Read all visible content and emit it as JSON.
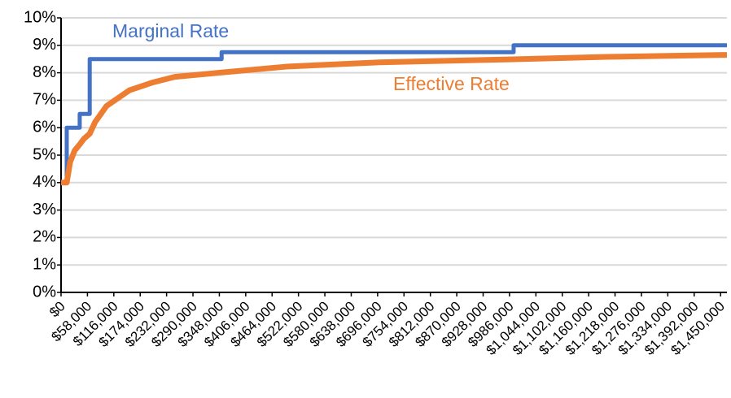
{
  "chart_data": {
    "type": "line",
    "series": [
      {
        "name": "Marginal Rate",
        "color": "#4472c4",
        "x": [
          0,
          12500,
          12500,
          41000,
          41000,
          63000,
          63000,
          353000,
          353000,
          995000,
          995000,
          1464000
        ],
        "values": [
          4,
          4,
          6,
          6,
          6.5,
          6.5,
          8.5,
          8.5,
          8.75,
          8.75,
          9,
          9
        ]
      },
      {
        "name": "Effective Rate",
        "color": "#ed7d31",
        "x": [
          0,
          12500,
          20000,
          30000,
          41000,
          50000,
          63000,
          75000,
          100000,
          150000,
          200000,
          250000,
          353000,
          500000,
          700000,
          995000,
          1200000,
          1464000
        ],
        "values": [
          4,
          4,
          4.75,
          5.17,
          5.39,
          5.59,
          5.78,
          6.21,
          6.79,
          7.36,
          7.64,
          7.85,
          8.01,
          8.23,
          8.38,
          8.49,
          8.58,
          8.65
        ]
      }
    ],
    "xlim": [
      0,
      1464000
    ],
    "xticks": [
      {
        "value": 0,
        "label": "$0"
      },
      {
        "value": 58000,
        "label": "$58,000"
      },
      {
        "value": 116000,
        "label": "$116,000"
      },
      {
        "value": 174000,
        "label": "$174,000"
      },
      {
        "value": 232000,
        "label": "$232,000"
      },
      {
        "value": 290000,
        "label": "$290,000"
      },
      {
        "value": 348000,
        "label": "$348,000"
      },
      {
        "value": 406000,
        "label": "$406,000"
      },
      {
        "value": 464000,
        "label": "$464,000"
      },
      {
        "value": 522000,
        "label": "$522,000"
      },
      {
        "value": 580000,
        "label": "$580,000"
      },
      {
        "value": 638000,
        "label": "$638,000"
      },
      {
        "value": 696000,
        "label": "$696,000"
      },
      {
        "value": 754000,
        "label": "$754,000"
      },
      {
        "value": 812000,
        "label": "$812,000"
      },
      {
        "value": 870000,
        "label": "$870,000"
      },
      {
        "value": 928000,
        "label": "$928,000"
      },
      {
        "value": 986000,
        "label": "$986,000"
      },
      {
        "value": 1044000,
        "label": "$1,044,000"
      },
      {
        "value": 1102000,
        "label": "$1,102,000"
      },
      {
        "value": 1160000,
        "label": "$1,160,000"
      },
      {
        "value": 1218000,
        "label": "$1,218,000"
      },
      {
        "value": 1276000,
        "label": "$1,276,000"
      },
      {
        "value": 1334000,
        "label": "$1,334,000"
      },
      {
        "value": 1392000,
        "label": "$1,392,000"
      },
      {
        "value": 1450000,
        "label": "$1,450,000"
      }
    ],
    "ylim": [
      0,
      10
    ],
    "yticks": [
      {
        "value": 0,
        "label": "0%"
      },
      {
        "value": 1,
        "label": "1%"
      },
      {
        "value": 2,
        "label": "2%"
      },
      {
        "value": 3,
        "label": "3%"
      },
      {
        "value": 4,
        "label": "4%"
      },
      {
        "value": 5,
        "label": "5%"
      },
      {
        "value": 6,
        "label": "6%"
      },
      {
        "value": 7,
        "label": "7%"
      },
      {
        "value": 8,
        "label": "8%"
      },
      {
        "value": 9,
        "label": "9%"
      },
      {
        "value": 10,
        "label": "10%"
      }
    ],
    "grid": true
  }
}
